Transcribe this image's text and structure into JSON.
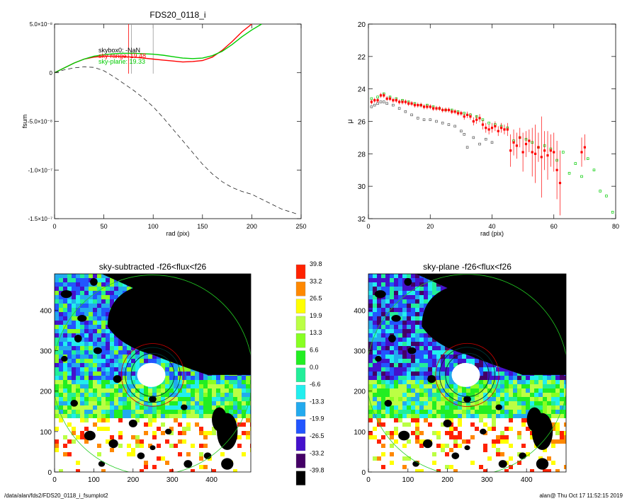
{
  "footer": {
    "path": "/data/alan/fds2/FDS20_0118_i_fsumplot2",
    "stamp": "alan@  Thu Oct 17 11:52:15 2019"
  },
  "colorbar": {
    "labels": [
      "39.8",
      "33.2",
      "26.5",
      "19.9",
      "13.3",
      "6.6",
      "0.0",
      "-6.6",
      "-13.3",
      "-19.9",
      "-26.5",
      "-33.2",
      "-39.8"
    ],
    "colors": [
      "#ff2200",
      "#ff8800",
      "#ffff00",
      "#bbff44",
      "#88ff22",
      "#22ee22",
      "#22ee99",
      "#22eeee",
      "#22aaee",
      "#2255ff",
      "#4411cc",
      "#440066",
      "#000000"
    ]
  },
  "chart_data": [
    {
      "type": "line",
      "title": "FDS20_0118_i",
      "xlabel": "rad (pix)",
      "ylabel": "fsum",
      "xlim": [
        0,
        250
      ],
      "ylim": [
        -1.5e-07,
        5e-08
      ],
      "xticks": [
        0,
        50,
        100,
        150,
        200,
        250
      ],
      "yticks": [
        {
          "value": 5e-08,
          "label": "5.0×10⁻⁸"
        },
        {
          "value": 0,
          "label": "0"
        },
        {
          "value": -5e-08,
          "label": "-5.0×10⁻⁸"
        },
        {
          "value": -1e-07,
          "label": "-1.0×10⁻⁷"
        },
        {
          "value": -1.5e-07,
          "label": "-1.5×10⁻⁷"
        }
      ],
      "annotations": [
        {
          "text": "skybox0: -NaN",
          "color": "#000000"
        },
        {
          "text": "sky-range: 19.48",
          "color": "#ff0000"
        },
        {
          "text": "sky-plane: 19.33",
          "color": "#00cc00"
        }
      ],
      "vlines": [
        {
          "x": 75,
          "color": "#ff0000"
        },
        {
          "x": 78,
          "color": "#999999"
        },
        {
          "x": 100,
          "color": "#999999"
        }
      ],
      "series": [
        {
          "color": "#ff0000",
          "dash": "solid",
          "x": [
            0,
            10,
            20,
            30,
            40,
            50,
            60,
            70,
            80,
            90,
            100,
            110,
            120,
            130,
            140,
            150,
            160,
            170,
            180,
            190,
            200
          ],
          "y": [
            0,
            5e-09,
            1e-08,
            1.4e-08,
            1.6e-08,
            1.7e-08,
            1.7e-08,
            1.65e-08,
            1.6e-08,
            1.5e-08,
            1.4e-08,
            1.3e-08,
            1.2e-08,
            1.1e-08,
            1.15e-08,
            1.25e-08,
            1.6e-08,
            2.3e-08,
            3.2e-08,
            4.2e-08,
            5e-08
          ]
        },
        {
          "color": "#00cc00",
          "dash": "solid",
          "x": [
            0,
            10,
            20,
            30,
            40,
            50,
            60,
            70,
            80,
            90,
            100,
            110,
            120,
            130,
            140,
            150,
            160,
            170,
            180,
            190,
            200,
            210
          ],
          "y": [
            0,
            5e-09,
            1e-08,
            1.4e-08,
            1.7e-08,
            1.85e-08,
            1.95e-08,
            2e-08,
            2e-08,
            1.95e-08,
            1.9e-08,
            1.8e-08,
            1.65e-08,
            1.5e-08,
            1.45e-08,
            1.5e-08,
            1.75e-08,
            2.2e-08,
            2.9e-08,
            3.7e-08,
            4.4e-08,
            5e-08
          ]
        },
        {
          "color": "#222222",
          "dash": "dashed",
          "x": [
            0,
            10,
            20,
            30,
            40,
            50,
            60,
            70,
            80,
            90,
            100,
            110,
            120,
            130,
            140,
            150,
            160,
            170,
            180,
            190,
            200,
            210,
            220,
            230,
            245
          ],
          "y": [
            0,
            3e-09,
            5e-09,
            6e-09,
            5.5e-09,
            2e-09,
            -4e-09,
            -1.1e-08,
            -1.8e-08,
            -2.6e-08,
            -3.5e-08,
            -4.6e-08,
            -5.8e-08,
            -7e-08,
            -8.2e-08,
            -9.4e-08,
            -1.04e-07,
            -1.12e-07,
            -1.18e-07,
            -1.22e-07,
            -1.25e-07,
            -1.3e-07,
            -1.35e-07,
            -1.4e-07,
            -1.45e-07
          ]
        }
      ]
    },
    {
      "type": "scatter",
      "title": "",
      "xlabel": "rad (pix)",
      "ylabel": "μ",
      "xlim": [
        0,
        80
      ],
      "ylim": [
        32,
        20
      ],
      "xticks": [
        0,
        20,
        40,
        60,
        80
      ],
      "yticks": [
        20,
        22,
        24,
        26,
        28,
        30,
        32
      ],
      "series": [
        {
          "color": "#ff0000",
          "marker": "filled-square-with-errorbar",
          "x": [
            1,
            2,
            3,
            4,
            5,
            6,
            7,
            8,
            9,
            10,
            11,
            12,
            13,
            14,
            15,
            16,
            17,
            18,
            19,
            20,
            21,
            22,
            23,
            24,
            25,
            26,
            27,
            28,
            29,
            30,
            31,
            32,
            33,
            34,
            35,
            36,
            37,
            38,
            39,
            40,
            41,
            42,
            43,
            44,
            45,
            46,
            47,
            48,
            49,
            50,
            51,
            52,
            53,
            54,
            55,
            56,
            57,
            58,
            59,
            60,
            61,
            62,
            69,
            70
          ],
          "y": [
            24.8,
            24.7,
            24.7,
            24.4,
            24.4,
            24.6,
            24.6,
            24.7,
            24.7,
            24.8,
            24.8,
            24.8,
            24.9,
            24.9,
            25.0,
            25.0,
            25.0,
            25.1,
            25.1,
            25.1,
            25.2,
            25.2,
            25.2,
            25.3,
            25.3,
            25.3,
            25.4,
            25.4,
            25.5,
            25.5,
            25.7,
            25.6,
            25.7,
            26.0,
            25.9,
            25.8,
            26.2,
            26.4,
            26.5,
            26.4,
            26.3,
            26.6,
            26.4,
            26.5,
            26.5,
            27.8,
            27.3,
            27.5,
            27.0,
            27.9,
            27.4,
            27.2,
            27.9,
            28.0,
            27.6,
            28.2,
            27.8,
            28.1,
            27.8,
            27.9,
            29.0,
            29.8,
            27.9,
            27.6
          ],
          "err": [
            0.15,
            0.15,
            0.15,
            0.15,
            0.15,
            0.15,
            0.15,
            0.15,
            0.15,
            0.15,
            0.15,
            0.15,
            0.15,
            0.15,
            0.15,
            0.15,
            0.15,
            0.15,
            0.15,
            0.15,
            0.15,
            0.15,
            0.15,
            0.15,
            0.15,
            0.15,
            0.15,
            0.15,
            0.15,
            0.15,
            0.2,
            0.2,
            0.2,
            0.25,
            0.25,
            0.25,
            0.3,
            0.3,
            0.3,
            0.3,
            0.3,
            0.3,
            0.3,
            0.3,
            0.4,
            1.0,
            0.8,
            0.8,
            0.6,
            1.2,
            0.8,
            0.7,
            1.5,
            1.8,
            0.9,
            2.5,
            1.2,
            1.5,
            1.0,
            1.2,
            1.8,
            2.0,
            0.9,
            0.8
          ]
        },
        {
          "color": "#00cc00",
          "marker": "open-square",
          "x": [
            1,
            3,
            5,
            7,
            9,
            11,
            13,
            15,
            17,
            19,
            21,
            23,
            25,
            27,
            29,
            31,
            33,
            35,
            37,
            39,
            41,
            43,
            45,
            47,
            49,
            51,
            53,
            55,
            57,
            59,
            61,
            63,
            65,
            67,
            69,
            71,
            73,
            75,
            77,
            79
          ],
          "y": [
            24.6,
            24.5,
            24.3,
            24.5,
            24.6,
            24.7,
            24.8,
            24.9,
            25.0,
            25.0,
            25.1,
            25.2,
            25.3,
            25.3,
            25.4,
            25.5,
            25.6,
            25.7,
            25.9,
            26.1,
            26.2,
            26.3,
            26.4,
            27.2,
            27.0,
            27.1,
            27.3,
            27.6,
            27.5,
            27.7,
            28.4,
            27.9,
            29.2,
            28.6,
            29.4,
            28.3,
            29.0,
            30.3,
            30.6,
            31.6
          ]
        },
        {
          "color": "#555555",
          "marker": "open-square",
          "x": [
            1,
            2,
            3,
            4,
            5,
            6,
            8,
            10,
            12,
            14,
            16,
            18,
            20,
            22,
            24,
            26,
            28,
            30,
            31,
            32,
            34,
            36,
            38,
            40
          ],
          "y": [
            25.1,
            25.0,
            24.9,
            24.8,
            24.8,
            24.9,
            25.0,
            25.2,
            25.4,
            25.6,
            25.8,
            25.9,
            25.9,
            26.0,
            26.1,
            26.2,
            26.3,
            26.6,
            26.8,
            27.6,
            27.0,
            27.4,
            27.1,
            27.3
          ]
        }
      ]
    },
    {
      "type": "heatmap",
      "title": "sky-subtracted -f26<flux<f26",
      "xlim": [
        0,
        500
      ],
      "ylim": [
        0,
        490
      ],
      "xticks": [
        0,
        100,
        200,
        300,
        400
      ],
      "yticks": [
        0,
        100,
        200,
        300,
        400
      ]
    },
    {
      "type": "heatmap",
      "title": "sky-plane -f26<flux<f26",
      "xlim": [
        0,
        500
      ],
      "ylim": [
        0,
        490
      ],
      "xticks": [
        0,
        100,
        200,
        300,
        400
      ],
      "yticks": [
        0,
        100,
        200,
        300,
        400
      ]
    }
  ]
}
